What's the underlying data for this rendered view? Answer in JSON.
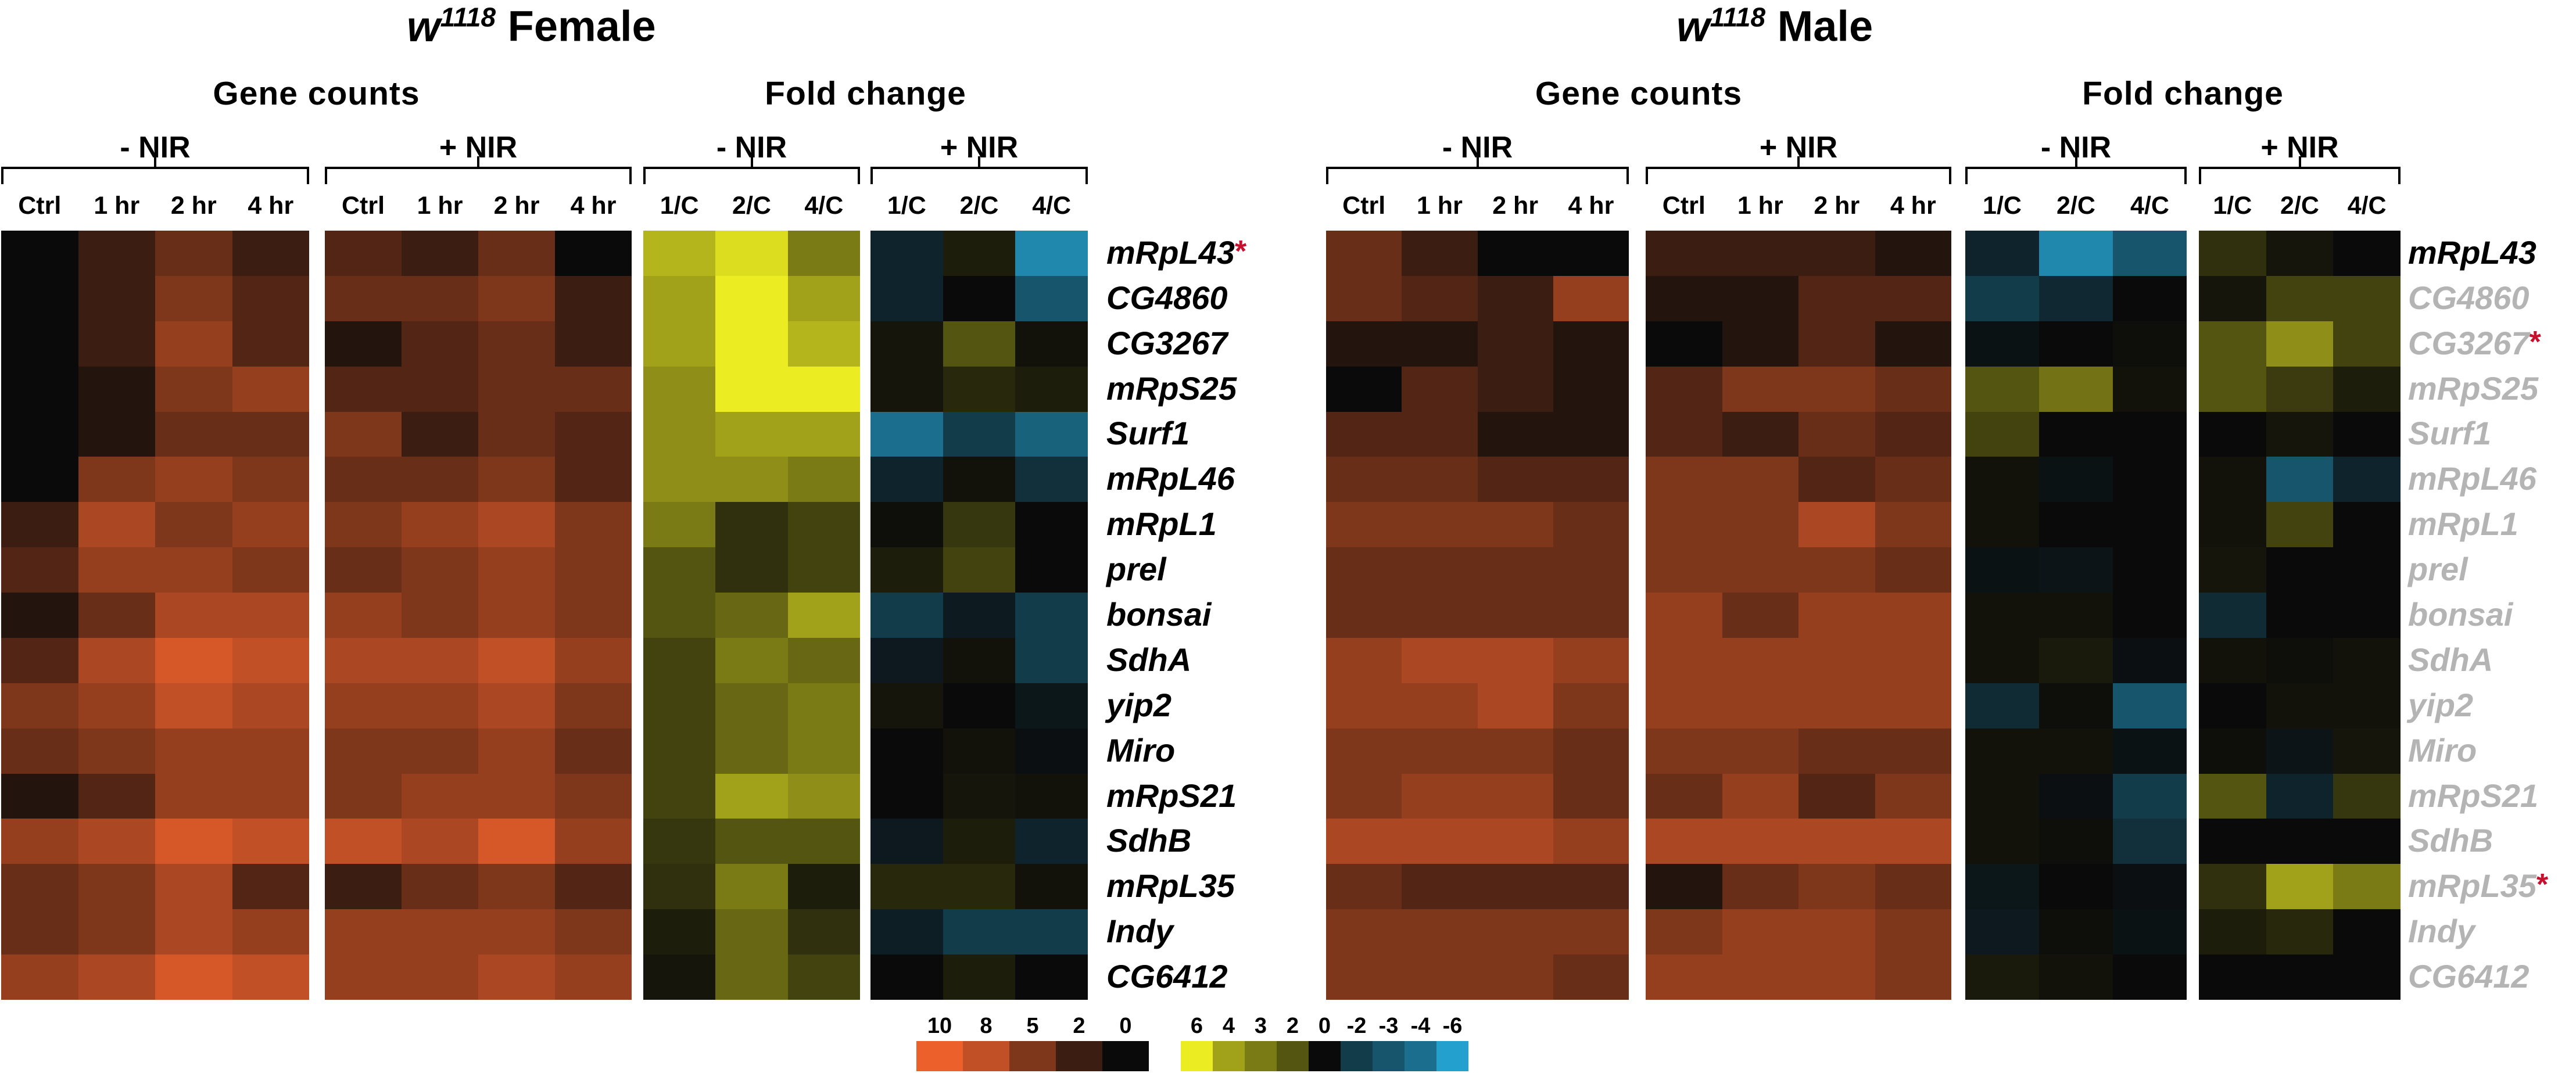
{
  "chart_data": {
    "type": "heatmap",
    "genes": [
      "mRpL43",
      "CG4860",
      "CG3267",
      "mRpS25",
      "Surf1",
      "mRpL46",
      "mRpL1",
      "prel",
      "bonsai",
      "SdhA",
      "yip2",
      "Miro",
      "mRpS21",
      "SdhB",
      "mRpL35",
      "Indy",
      "CG6412"
    ],
    "count_columns": [
      "Ctrl",
      "1 hr",
      "2 hr",
      "4 hr"
    ],
    "fold_columns": [
      "1/C",
      "2/C",
      "4/C"
    ],
    "count_scale": [
      0,
      10
    ],
    "fold_scale": [
      -6,
      6
    ],
    "panels": [
      {
        "title_main": "w",
        "title_sup": "1118",
        "title_rest": "Female",
        "gene_counts_label": "Gene counts",
        "fold_change_label": "Fold change",
        "minus_label": "- NIR",
        "plus_label": "+ NIR",
        "starred": [
          "mRpL43"
        ],
        "counts_minus": [
          [
            0,
            2,
            4,
            2
          ],
          [
            0,
            2,
            5,
            3
          ],
          [
            0,
            2,
            6,
            3
          ],
          [
            0,
            1,
            5,
            6
          ],
          [
            0,
            1,
            4,
            4
          ],
          [
            0,
            5,
            6,
            5
          ],
          [
            2,
            7,
            5,
            6
          ],
          [
            3,
            6,
            6,
            5
          ],
          [
            1,
            4,
            7,
            7
          ],
          [
            3,
            7,
            9,
            8
          ],
          [
            5,
            6,
            8,
            7
          ],
          [
            4,
            5,
            6,
            6
          ],
          [
            1,
            3,
            6,
            6
          ],
          [
            6,
            7,
            9,
            8
          ],
          [
            4,
            5,
            7,
            3
          ],
          [
            4,
            5,
            7,
            6
          ],
          [
            6,
            7,
            9,
            8
          ]
        ],
        "counts_plus": [
          [
            3,
            2,
            4,
            0
          ],
          [
            4,
            4,
            5,
            2
          ],
          [
            1,
            3,
            4,
            2
          ],
          [
            3,
            3,
            4,
            4
          ],
          [
            5,
            2,
            4,
            3
          ],
          [
            4,
            4,
            5,
            3
          ],
          [
            5,
            6,
            7,
            5
          ],
          [
            4,
            5,
            6,
            5
          ],
          [
            6,
            5,
            6,
            5
          ],
          [
            7,
            7,
            8,
            6
          ],
          [
            6,
            6,
            7,
            5
          ],
          [
            5,
            5,
            6,
            4
          ],
          [
            5,
            6,
            6,
            5
          ],
          [
            8,
            7,
            9,
            6
          ],
          [
            2,
            4,
            5,
            3
          ],
          [
            6,
            6,
            6,
            5
          ],
          [
            6,
            6,
            7,
            6
          ]
        ],
        "fold_minus": [
          [
            4.5,
            5.6,
            3.0
          ],
          [
            4.0,
            6.0,
            4.0
          ],
          [
            4.0,
            6.0,
            4.5
          ],
          [
            3.5,
            6.0,
            6.0
          ],
          [
            3.5,
            4.0,
            4.0
          ],
          [
            3.5,
            3.5,
            3.0
          ],
          [
            3.0,
            1.0,
            1.5
          ],
          [
            2.0,
            1.0,
            1.5
          ],
          [
            2.0,
            2.5,
            4.0
          ],
          [
            1.5,
            3.0,
            2.5
          ],
          [
            1.5,
            2.5,
            3.0
          ],
          [
            1.5,
            2.5,
            3.0
          ],
          [
            1.5,
            4.0,
            3.5
          ],
          [
            1.2,
            2.0,
            2.0
          ],
          [
            1.0,
            3.0,
            0.5
          ],
          [
            0.5,
            2.5,
            1.0
          ],
          [
            0.3,
            2.5,
            1.5
          ]
        ],
        "fold_plus": [
          [
            -1,
            0.5,
            -5
          ],
          [
            -1,
            0,
            -3
          ],
          [
            0.3,
            2,
            0.2
          ],
          [
            0.3,
            0.8,
            0.5
          ],
          [
            -4,
            -2,
            -3.5
          ],
          [
            -1,
            0.2,
            -1.5
          ],
          [
            0.1,
            1.2,
            0
          ],
          [
            0.5,
            1.5,
            0
          ],
          [
            -2,
            -0.7,
            -2
          ],
          [
            -0.6,
            0.2,
            -2
          ],
          [
            0.3,
            0,
            -0.5
          ],
          [
            0,
            0.2,
            -0.2
          ],
          [
            0,
            0.3,
            0.2
          ],
          [
            -0.6,
            0.5,
            -1
          ],
          [
            0.8,
            0.8,
            0.2
          ],
          [
            -0.8,
            -2,
            -2
          ],
          [
            0,
            0.5,
            0
          ]
        ]
      },
      {
        "title_main": "w",
        "title_sup": "1118",
        "title_rest": "Male",
        "gene_counts_label": "Gene counts",
        "fold_change_label": "Fold change",
        "minus_label": "- NIR",
        "plus_label": "+ NIR",
        "starred": [
          "CG3267",
          "mRpL35"
        ],
        "counts_minus": [
          [
            4,
            2,
            0,
            0
          ],
          [
            4,
            3,
            2,
            6
          ],
          [
            1,
            1,
            2,
            1
          ],
          [
            0,
            3,
            2,
            1
          ],
          [
            3,
            3,
            1,
            1
          ],
          [
            4,
            4,
            3,
            3
          ],
          [
            5,
            5,
            5,
            4
          ],
          [
            4,
            4,
            4,
            4
          ],
          [
            4,
            4,
            4,
            4
          ],
          [
            6,
            7,
            7,
            6
          ],
          [
            6,
            6,
            7,
            5
          ],
          [
            5,
            5,
            5,
            4
          ],
          [
            5,
            6,
            6,
            4
          ],
          [
            7,
            7,
            7,
            6
          ],
          [
            4,
            3,
            3,
            3
          ],
          [
            5,
            5,
            5,
            5
          ],
          [
            5,
            5,
            5,
            4
          ]
        ],
        "counts_plus": [
          [
            2,
            2,
            2,
            1
          ],
          [
            1,
            1,
            3,
            3
          ],
          [
            0,
            1,
            3,
            1
          ],
          [
            3,
            5,
            5,
            4
          ],
          [
            3,
            2,
            4,
            3
          ],
          [
            5,
            5,
            3,
            4
          ],
          [
            5,
            5,
            7,
            5
          ],
          [
            5,
            5,
            5,
            4
          ],
          [
            6,
            4,
            6,
            6
          ],
          [
            6,
            6,
            6,
            6
          ],
          [
            6,
            6,
            6,
            6
          ],
          [
            5,
            5,
            4,
            4
          ],
          [
            4,
            6,
            3,
            5
          ],
          [
            7,
            7,
            7,
            7
          ],
          [
            1,
            4,
            5,
            4
          ],
          [
            5,
            6,
            6,
            5
          ],
          [
            6,
            6,
            6,
            5
          ]
        ],
        "fold_minus": [
          [
            -1,
            -5,
            -3
          ],
          [
            -2,
            -1.2,
            0
          ],
          [
            -0.3,
            0,
            0.1
          ],
          [
            2,
            2.8,
            0.2
          ],
          [
            1.5,
            0,
            0
          ],
          [
            0.2,
            -0.3,
            0
          ],
          [
            0.2,
            0,
            0
          ],
          [
            -0.3,
            -0.4,
            0
          ],
          [
            0.2,
            0.2,
            0
          ],
          [
            0.2,
            0.4,
            -0.2
          ],
          [
            -1.3,
            0.1,
            -3
          ],
          [
            0.2,
            0.2,
            -0.3
          ],
          [
            0.2,
            -0.2,
            -2
          ],
          [
            0.2,
            0.1,
            -1.5
          ],
          [
            -0.5,
            0,
            -0.2
          ],
          [
            -0.6,
            0.1,
            -0.3
          ],
          [
            0.4,
            0.2,
            0
          ]
        ],
        "fold_plus": [
          [
            1,
            0.3,
            0
          ],
          [
            0.3,
            1.5,
            1.5
          ],
          [
            2,
            3.5,
            1.5
          ],
          [
            2,
            1.3,
            0.5
          ],
          [
            0,
            0.3,
            0
          ],
          [
            0.2,
            -3,
            -1
          ],
          [
            0.2,
            1.5,
            0
          ],
          [
            0.3,
            0,
            0
          ],
          [
            -1.3,
            0,
            0
          ],
          [
            0.2,
            0.1,
            0.2
          ],
          [
            0,
            0.2,
            0.2
          ],
          [
            0.1,
            -0.4,
            0.3
          ],
          [
            2,
            -1,
            1.2
          ],
          [
            0,
            0,
            0
          ],
          [
            1,
            4,
            3
          ],
          [
            0.5,
            0.8,
            0
          ],
          [
            0,
            0,
            0
          ]
        ]
      }
    ],
    "count_legend_ticks": [
      "10",
      "8",
      "5",
      "2",
      "0"
    ],
    "fold_legend_ticks": [
      "6",
      "4",
      "3",
      "2",
      "0",
      "-2",
      "-3",
      "-4",
      "-6"
    ]
  }
}
